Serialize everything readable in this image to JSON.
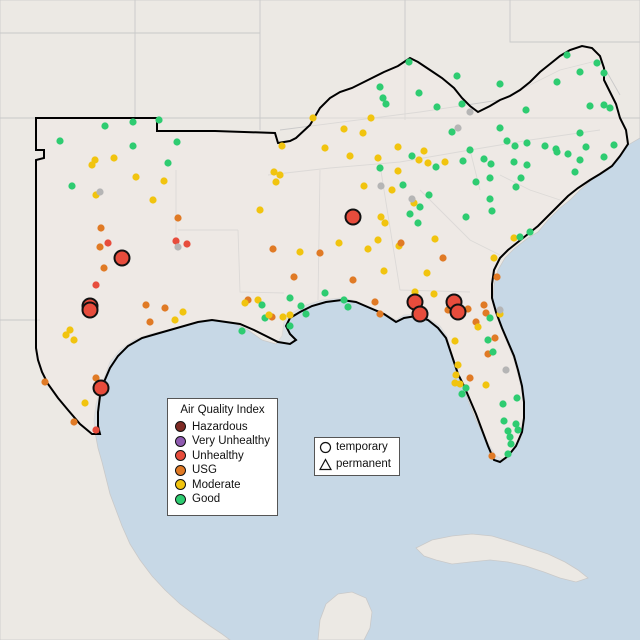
{
  "legend": {
    "title": "Air Quality Index",
    "categories": [
      {
        "label": "Hazardous",
        "color": "#7e2a24"
      },
      {
        "label": "Very Unhealthy",
        "color": "#8f5bb0"
      },
      {
        "label": "Unhealthy",
        "color": "#e74c3c"
      },
      {
        "label": "USG",
        "color": "#e07a25"
      },
      {
        "label": "Moderate",
        "color": "#f1c40f"
      },
      {
        "label": "Good",
        "color": "#2ecc71"
      }
    ],
    "no_data_color": "#b5b5b5"
  },
  "shape_legend": {
    "temporary": "temporary",
    "permanent": "permanent"
  },
  "colors": {
    "water": "#c7d8e6",
    "land": "#ece9e4",
    "region_land": "#efeae6",
    "boundary": "#000000",
    "state_lines": "#c9c9c9"
  }
}
